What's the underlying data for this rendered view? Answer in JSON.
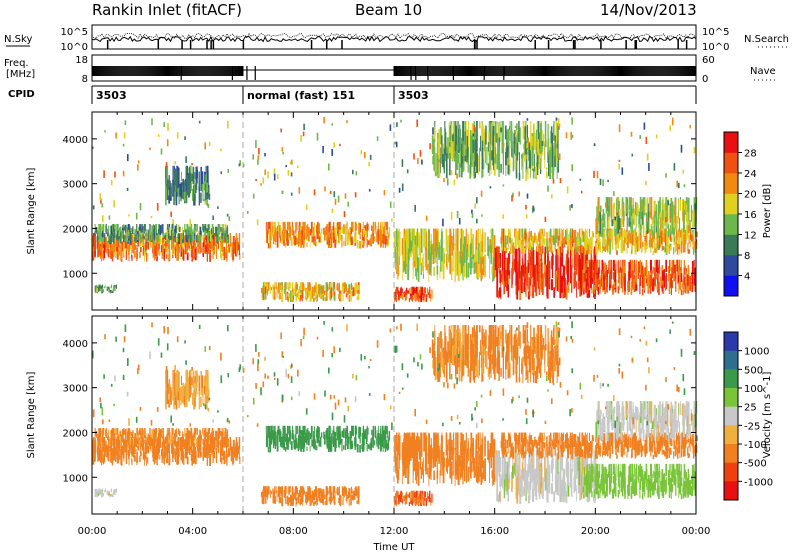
{
  "chart_data": {
    "type": "heatmap",
    "header": {
      "title": "Rankin Inlet (fitACF)",
      "beam": "Beam 10",
      "date": "14/Nov/2013"
    },
    "noise_panel": {
      "left_label": "N.Sky",
      "right_label": "N.Search",
      "left_ticks": [
        "10^5",
        "10^0"
      ],
      "right_ticks": [
        "10^5",
        "10^0"
      ]
    },
    "freq_panel": {
      "left_label_1": "Freq.",
      "left_label_2": "[MHz]",
      "right_label": "Nave",
      "left_ticks": [
        "18",
        "8"
      ],
      "right_ticks": [
        "60",
        "0"
      ]
    },
    "cpid": {
      "label": "CPID",
      "segments": [
        {
          "start_h": 0,
          "end_h": 6,
          "text": "3503"
        },
        {
          "start_h": 6,
          "end_h": 12,
          "text": "normal (fast) 151"
        },
        {
          "start_h": 12,
          "end_h": 24,
          "text": "3503"
        }
      ]
    },
    "x_axis": {
      "label": "Time UT",
      "range_h": [
        0,
        24
      ],
      "ticks": [
        {
          "h": 0,
          "label": "00:00"
        },
        {
          "h": 4,
          "label": "04:00"
        },
        {
          "h": 8,
          "label": "08:00"
        },
        {
          "h": 12,
          "label": "12:00"
        },
        {
          "h": 16,
          "label": "16:00"
        },
        {
          "h": 20,
          "label": "20:00"
        },
        {
          "h": 24,
          "label": "00:00"
        }
      ]
    },
    "y_axis": {
      "label": "Slant Range [km]",
      "range_km": [
        180,
        4600
      ],
      "ticks": [
        1000,
        2000,
        3000,
        4000
      ]
    },
    "power_panel": {
      "colorbar_label": "Power [dB]",
      "colorbar_ticks": [
        "4",
        "8",
        "12",
        "16",
        "20",
        "24",
        "28"
      ],
      "colors": [
        "#1010ee",
        "#2f4a9c",
        "#3a7a58",
        "#6db84c",
        "#e0d020",
        "#f08a10",
        "#f05010",
        "#e81010"
      ]
    },
    "velocity_panel": {
      "colorbar_label": "Velocity [m s^-1]",
      "colorbar_ticks": [
        "1000",
        "500",
        "100",
        "25",
        "-25",
        "-100",
        "-500",
        "-1000"
      ],
      "colors": [
        "#2a3aaa",
        "#2e6e8e",
        "#3a9a4a",
        "#7ac43a",
        "#c8c8c8",
        "#f0b040",
        "#f08020",
        "#f04010",
        "#e81010"
      ]
    },
    "echo_regions": [
      {
        "h0": 0.0,
        "h1": 5.9,
        "r0": 1250,
        "r1": 1900,
        "pw": 24,
        "v": -300
      },
      {
        "h0": 0.1,
        "h1": 5.4,
        "r0": 1650,
        "r1": 2100,
        "pw": 12,
        "v": -150
      },
      {
        "h0": 6.9,
        "h1": 11.8,
        "r0": 1550,
        "r1": 2150,
        "pw": 22,
        "v": 300
      },
      {
        "h0": 6.7,
        "h1": 10.6,
        "r0": 350,
        "r1": 800,
        "pw": 20,
        "v": -300
      },
      {
        "h0": 12.0,
        "h1": 16.0,
        "r0": 800,
        "r1": 2000,
        "pw": 18,
        "v": -200
      },
      {
        "h0": 12.0,
        "h1": 13.5,
        "r0": 350,
        "r1": 700,
        "pw": 26,
        "v": -500
      },
      {
        "h0": 16.0,
        "h1": 20.0,
        "r0": 400,
        "r1": 1600,
        "pw": 28,
        "v": 0
      },
      {
        "h0": 16.2,
        "h1": 24.0,
        "r0": 1400,
        "r1": 2000,
        "pw": 20,
        "v": -200
      },
      {
        "h0": 19.5,
        "h1": 24.0,
        "r0": 500,
        "r1": 1300,
        "pw": 26,
        "v": 60
      },
      {
        "h0": 20.0,
        "h1": 24.0,
        "r0": 1800,
        "r1": 2700,
        "pw": 16,
        "v": 0
      },
      {
        "h0": 2.9,
        "h1": 4.6,
        "r0": 2500,
        "r1": 3400,
        "pw": 10,
        "v": -80
      },
      {
        "h0": 13.5,
        "h1": 18.5,
        "r0": 3100,
        "r1": 4400,
        "pw": 14,
        "v": -150
      },
      {
        "h0": 0.1,
        "h1": 1.0,
        "r0": 550,
        "r1": 750,
        "pw": 12,
        "v": 0
      }
    ]
  }
}
